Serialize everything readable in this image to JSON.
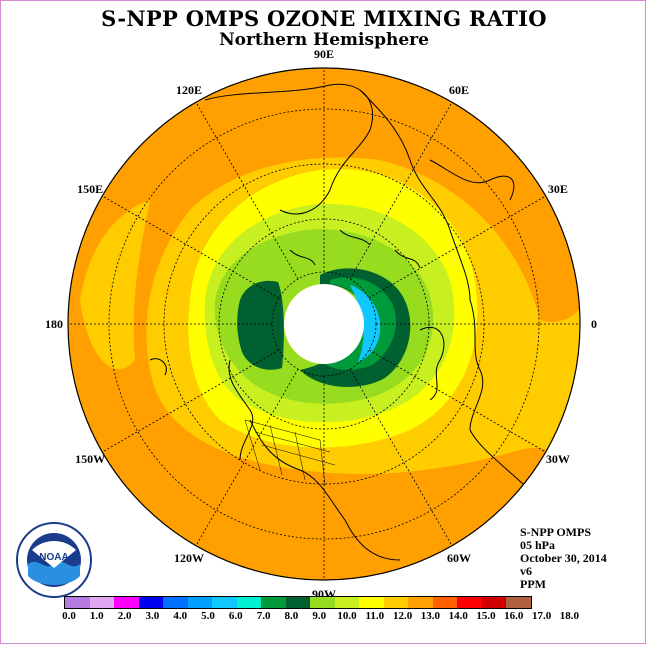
{
  "title": "S-NPP OMPS OZONE MIXING RATIO",
  "subtitle": "Northern Hemisphere",
  "info": [
    "S-NPP OMPS",
    "05 hPa",
    "October 30, 2014",
    "v6",
    "PPM"
  ],
  "longitude_labels": [
    "90E",
    "60E",
    "30E",
    "0",
    "30W",
    "60W",
    "90W",
    "120W",
    "150W",
    "180",
    "150E",
    "120E"
  ],
  "colorbar": {
    "ticks": [
      "0.0",
      "1.0",
      "2.0",
      "3.0",
      "4.0",
      "5.0",
      "6.0",
      "7.0",
      "8.0",
      "9.0",
      "10.0",
      "11.0",
      "12.0",
      "13.0",
      "14.0",
      "15.0",
      "16.0",
      "17.0",
      "18.0"
    ],
    "colors": [
      "#b57be0",
      "#e0a8f0",
      "#ff00ff",
      "#0000ee",
      "#0070ff",
      "#00a0ff",
      "#10c8ff",
      "#00f0d0",
      "#009a3a",
      "#006030",
      "#98dc20",
      "#c8f020",
      "#ffff00",
      "#ffcc00",
      "#ffa000",
      "#ff6000",
      "#ff0000",
      "#d00000",
      "#b06040"
    ]
  },
  "logo_text": "NOAA",
  "logo_ring_text": "NATIONAL OCEANIC AND ATMOSPHERIC ADMINISTRATION · U.S. DEPARTMENT OF COMMERCE"
}
